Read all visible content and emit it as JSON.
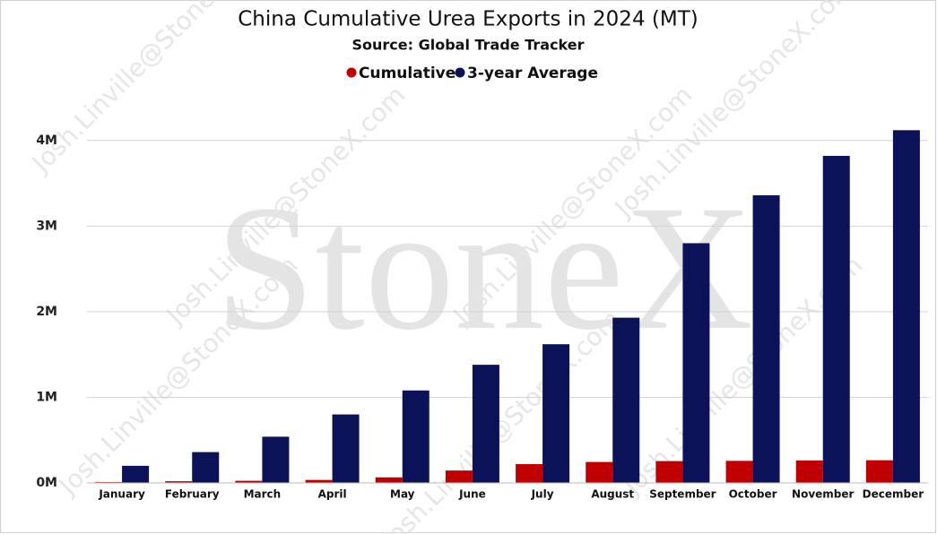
{
  "chart_data": {
    "type": "bar",
    "title": "China Cumulative Urea Exports in 2024 (MT)",
    "subtitle": "Source: Global Trade Tracker",
    "watermark": "StoneX",
    "watermark_email": "Josh.Linville@StoneX.com",
    "categories": [
      "January",
      "February",
      "March",
      "April",
      "May",
      "June",
      "July",
      "August",
      "September",
      "October",
      "November",
      "December"
    ],
    "series": [
      {
        "name": "Cumulative",
        "color": "#c00000",
        "values": [
          10000,
          20000,
          25000,
          35000,
          65000,
          145000,
          220000,
          245000,
          255000,
          258000,
          262000,
          265000
        ]
      },
      {
        "name": "3-year Average",
        "color": "#0c1257",
        "values": [
          200000,
          360000,
          540000,
          800000,
          1080000,
          1380000,
          1620000,
          1930000,
          2800000,
          3360000,
          3820000,
          4120000
        ]
      }
    ],
    "ylim": [
      0,
      4500000
    ],
    "yticks": [
      {
        "value": 0,
        "label": "0M"
      },
      {
        "value": 1000000,
        "label": "1M"
      },
      {
        "value": 2000000,
        "label": "2M"
      },
      {
        "value": 3000000,
        "label": "3M"
      },
      {
        "value": 4000000,
        "label": "4M"
      }
    ],
    "grid": true,
    "legend": "top"
  }
}
